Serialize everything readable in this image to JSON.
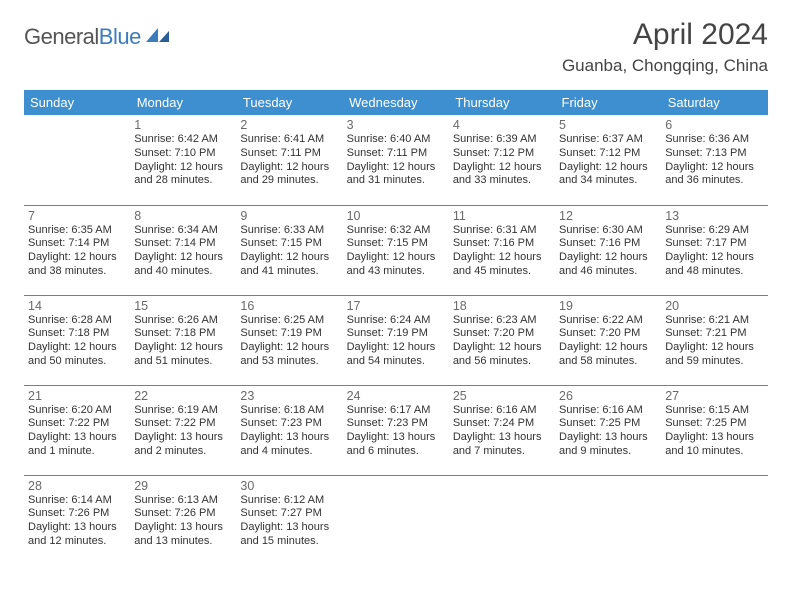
{
  "brand": {
    "name1": "General",
    "name2": "Blue"
  },
  "title": "April 2024",
  "location": "Guanba, Chongqing, China",
  "colors": {
    "header_bg": "#3d8fcf",
    "header_text": "#ffffff",
    "rule": "#3d8fcf",
    "text": "#333333",
    "daynum": "#6a6a6a",
    "brand_gray": "#555555",
    "brand_blue": "#3d7bbf",
    "page_bg": "#ffffff"
  },
  "typography": {
    "title_fontsize": 30,
    "location_fontsize": 17,
    "header_fontsize": 13,
    "daynum_fontsize": 12.5,
    "body_fontsize": 11
  },
  "day_headers": [
    "Sunday",
    "Monday",
    "Tuesday",
    "Wednesday",
    "Thursday",
    "Friday",
    "Saturday"
  ],
  "labels": {
    "sunrise": "Sunrise:",
    "sunset": "Sunset:",
    "daylight": "Daylight:"
  },
  "weeks": [
    [
      null,
      {
        "n": "1",
        "sr": "6:42 AM",
        "ss": "7:10 PM",
        "dl": "12 hours and 28 minutes."
      },
      {
        "n": "2",
        "sr": "6:41 AM",
        "ss": "7:11 PM",
        "dl": "12 hours and 29 minutes."
      },
      {
        "n": "3",
        "sr": "6:40 AM",
        "ss": "7:11 PM",
        "dl": "12 hours and 31 minutes."
      },
      {
        "n": "4",
        "sr": "6:39 AM",
        "ss": "7:12 PM",
        "dl": "12 hours and 33 minutes."
      },
      {
        "n": "5",
        "sr": "6:37 AM",
        "ss": "7:12 PM",
        "dl": "12 hours and 34 minutes."
      },
      {
        "n": "6",
        "sr": "6:36 AM",
        "ss": "7:13 PM",
        "dl": "12 hours and 36 minutes."
      }
    ],
    [
      {
        "n": "7",
        "sr": "6:35 AM",
        "ss": "7:14 PM",
        "dl": "12 hours and 38 minutes."
      },
      {
        "n": "8",
        "sr": "6:34 AM",
        "ss": "7:14 PM",
        "dl": "12 hours and 40 minutes."
      },
      {
        "n": "9",
        "sr": "6:33 AM",
        "ss": "7:15 PM",
        "dl": "12 hours and 41 minutes."
      },
      {
        "n": "10",
        "sr": "6:32 AM",
        "ss": "7:15 PM",
        "dl": "12 hours and 43 minutes."
      },
      {
        "n": "11",
        "sr": "6:31 AM",
        "ss": "7:16 PM",
        "dl": "12 hours and 45 minutes."
      },
      {
        "n": "12",
        "sr": "6:30 AM",
        "ss": "7:16 PM",
        "dl": "12 hours and 46 minutes."
      },
      {
        "n": "13",
        "sr": "6:29 AM",
        "ss": "7:17 PM",
        "dl": "12 hours and 48 minutes."
      }
    ],
    [
      {
        "n": "14",
        "sr": "6:28 AM",
        "ss": "7:18 PM",
        "dl": "12 hours and 50 minutes."
      },
      {
        "n": "15",
        "sr": "6:26 AM",
        "ss": "7:18 PM",
        "dl": "12 hours and 51 minutes."
      },
      {
        "n": "16",
        "sr": "6:25 AM",
        "ss": "7:19 PM",
        "dl": "12 hours and 53 minutes."
      },
      {
        "n": "17",
        "sr": "6:24 AM",
        "ss": "7:19 PM",
        "dl": "12 hours and 54 minutes."
      },
      {
        "n": "18",
        "sr": "6:23 AM",
        "ss": "7:20 PM",
        "dl": "12 hours and 56 minutes."
      },
      {
        "n": "19",
        "sr": "6:22 AM",
        "ss": "7:20 PM",
        "dl": "12 hours and 58 minutes."
      },
      {
        "n": "20",
        "sr": "6:21 AM",
        "ss": "7:21 PM",
        "dl": "12 hours and 59 minutes."
      }
    ],
    [
      {
        "n": "21",
        "sr": "6:20 AM",
        "ss": "7:22 PM",
        "dl": "13 hours and 1 minute."
      },
      {
        "n": "22",
        "sr": "6:19 AM",
        "ss": "7:22 PM",
        "dl": "13 hours and 2 minutes."
      },
      {
        "n": "23",
        "sr": "6:18 AM",
        "ss": "7:23 PM",
        "dl": "13 hours and 4 minutes."
      },
      {
        "n": "24",
        "sr": "6:17 AM",
        "ss": "7:23 PM",
        "dl": "13 hours and 6 minutes."
      },
      {
        "n": "25",
        "sr": "6:16 AM",
        "ss": "7:24 PM",
        "dl": "13 hours and 7 minutes."
      },
      {
        "n": "26",
        "sr": "6:16 AM",
        "ss": "7:25 PM",
        "dl": "13 hours and 9 minutes."
      },
      {
        "n": "27",
        "sr": "6:15 AM",
        "ss": "7:25 PM",
        "dl": "13 hours and 10 minutes."
      }
    ],
    [
      {
        "n": "28",
        "sr": "6:14 AM",
        "ss": "7:26 PM",
        "dl": "13 hours and 12 minutes."
      },
      {
        "n": "29",
        "sr": "6:13 AM",
        "ss": "7:26 PM",
        "dl": "13 hours and 13 minutes."
      },
      {
        "n": "30",
        "sr": "6:12 AM",
        "ss": "7:27 PM",
        "dl": "13 hours and 15 minutes."
      },
      null,
      null,
      null,
      null
    ]
  ]
}
